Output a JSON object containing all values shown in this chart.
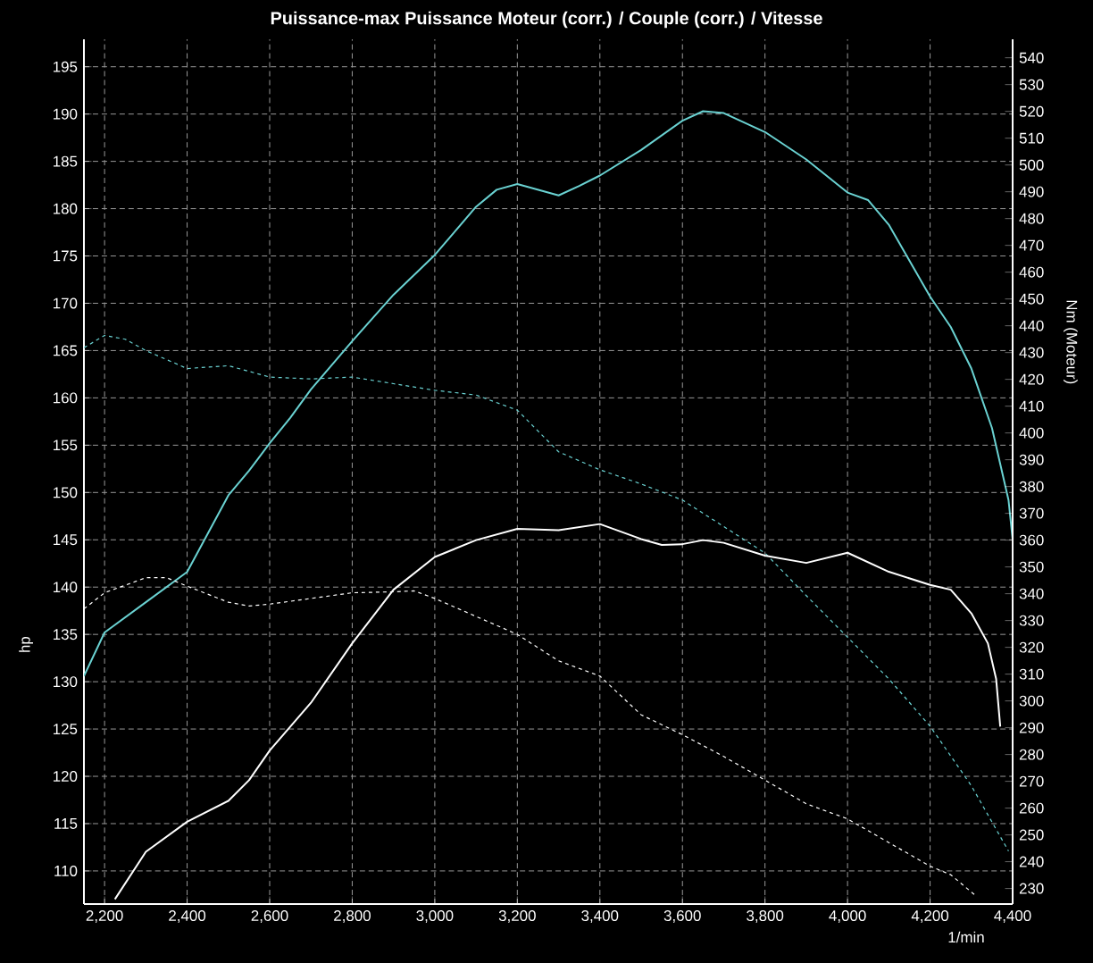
{
  "chart_data": {
    "type": "line",
    "title": "Puissance-max Puissance Moteur (corr.) / Couple (corr.) / Vitesse",
    "xlabel": "1/min",
    "ylabel": "hp",
    "y2label": "Nm (Moteur)",
    "xlim": [
      2150,
      4400
    ],
    "ylim": [
      106.5,
      197.9
    ],
    "y2lim": [
      224.2,
      546.9
    ],
    "xticks": [
      {
        "value": 2200,
        "label": "2,200"
      },
      {
        "value": 2400,
        "label": "2,400"
      },
      {
        "value": 2600,
        "label": "2,600"
      },
      {
        "value": 2800,
        "label": "2,800"
      },
      {
        "value": 3000,
        "label": "3,000"
      },
      {
        "value": 3200,
        "label": "3,200"
      },
      {
        "value": 3400,
        "label": "3,400"
      },
      {
        "value": 3600,
        "label": "3,600"
      },
      {
        "value": 3800,
        "label": "3,800"
      },
      {
        "value": 4000,
        "label": "4,000"
      },
      {
        "value": 4200,
        "label": "4,200"
      },
      {
        "value": 4400,
        "label": "4,400"
      }
    ],
    "yticks": [
      110,
      115,
      120,
      125,
      130,
      135,
      140,
      145,
      150,
      155,
      160,
      165,
      170,
      175,
      180,
      185,
      190,
      195
    ],
    "y2ticks": [
      230,
      240,
      250,
      260,
      270,
      280,
      290,
      300,
      310,
      320,
      330,
      340,
      350,
      360,
      370,
      380,
      390,
      400,
      410,
      420,
      430,
      440,
      450,
      460,
      470,
      480,
      490,
      500,
      510,
      520,
      530,
      540
    ],
    "grid": true,
    "series": [
      {
        "color": "#6ad2d2",
        "line_style": "solid",
        "x": [
          2150,
          2200,
          2300,
          2400,
          2500,
          2550,
          2600,
          2650,
          2700,
          2800,
          2900,
          3000,
          3100,
          3150,
          3200,
          3300,
          3350,
          3400,
          3500,
          3600,
          3650,
          3700,
          3800,
          3900,
          4000,
          4050,
          4100,
          4200,
          4250,
          4300,
          4350,
          4390,
          4400
        ],
        "values": [
          130.6,
          135.2,
          138.4,
          141.6,
          149.7,
          152.3,
          155.2,
          157.9,
          160.9,
          166,
          170.9,
          175.1,
          180.2,
          182,
          182.6,
          181.4,
          182.4,
          183.5,
          186.2,
          189.3,
          190.3,
          190.1,
          188.1,
          185.2,
          181.7,
          180.9,
          178.3,
          170.7,
          167.5,
          163.1,
          156.8,
          149.2,
          145
        ]
      },
      {
        "color": "#ffffff",
        "line_style": "solid",
        "axis": "y2",
        "x": [
          2225,
          2300,
          2400,
          2500,
          2550,
          2600,
          2700,
          2800,
          2900,
          3000,
          3100,
          3200,
          3300,
          3400,
          3500,
          3550,
          3600,
          3650,
          3700,
          3800,
          3900,
          4000,
          4100,
          4200,
          4250,
          4300,
          4340,
          4360,
          4370
        ],
        "values": [
          226,
          243.7,
          254.9,
          262.7,
          270.4,
          281.5,
          299.3,
          321.5,
          341.5,
          353.7,
          360,
          364.2,
          363.7,
          366,
          360.4,
          358.2,
          358.5,
          360,
          359,
          354.2,
          351.5,
          355.3,
          348.2,
          343.3,
          341.5,
          332.7,
          321.5,
          308.2,
          290.4
        ]
      },
      {
        "color": "#6ad2d2",
        "line_style": "dashed",
        "x": [
          2150,
          2200,
          2250,
          2300,
          2400,
          2500,
          2600,
          2700,
          2800,
          2900,
          3000,
          3100,
          3200,
          3300,
          3400,
          3500,
          3600,
          3800,
          3900,
          4000,
          4100,
          4200,
          4300,
          4390
        ],
        "values": [
          165.3,
          166.6,
          166.2,
          165,
          163.1,
          163.4,
          162.2,
          162,
          162.2,
          161.5,
          160.8,
          160.3,
          158.7,
          154.3,
          152.4,
          150.9,
          149.2,
          143.6,
          139.1,
          134.7,
          130.3,
          125.3,
          119,
          112.1
        ]
      },
      {
        "color": "#ffffff",
        "line_style": "dashed",
        "x": [
          2150,
          2200,
          2300,
          2350,
          2400,
          2500,
          2550,
          2600,
          2700,
          2800,
          2900,
          2950,
          3000,
          3100,
          3200,
          3300,
          3400,
          3500,
          3600,
          3700,
          3800,
          3900,
          4000,
          4100,
          4200,
          4250,
          4310
        ],
        "values": [
          137.7,
          139.4,
          141,
          141,
          140.1,
          138.4,
          138,
          138.2,
          138.8,
          139.4,
          139.5,
          139.6,
          138.8,
          136.9,
          135,
          132.2,
          130.6,
          126.5,
          124.4,
          122.1,
          119.6,
          117.1,
          115.5,
          113,
          110.5,
          109.6,
          107.4
        ]
      }
    ]
  }
}
